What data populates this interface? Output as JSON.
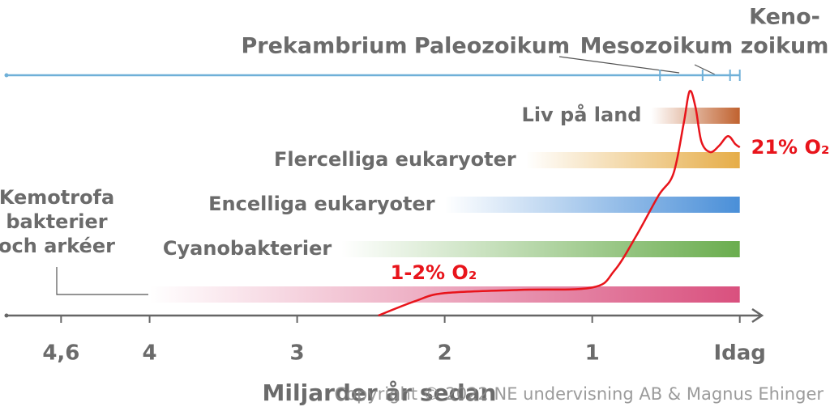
{
  "chart_data": {
    "type": "timeline",
    "x_label": "Miljarder år sedan",
    "xlim": [
      4.97,
      -0.15
    ],
    "xticks": [
      {
        "value": 4.6,
        "label": "4,6"
      },
      4,
      3,
      2,
      1,
      {
        "value": 0,
        "label": "Idag"
      }
    ],
    "eras": [
      "Prekambrium",
      "Paleozoikum",
      "Mesozoikum",
      [
        "Keno-",
        "zoikum"
      ]
    ],
    "era_boundaries": [
      0.541,
      0.252,
      0.066,
      0
    ],
    "series": [
      {
        "name": "Liv på land",
        "color": "#c0622f",
        "start": 0.6,
        "end": 0
      },
      {
        "name": "Flercelliga eukaryoter",
        "color": "#e6ad48",
        "start": 1.45,
        "end": 0
      },
      {
        "name": "Encelliga eukaryoter",
        "color": "#4a8fd8",
        "start": 2.0,
        "end": 0
      },
      {
        "name": "Cyanobakterier",
        "color": "#6aad4e",
        "start": 2.7,
        "end": 0
      },
      {
        "name": [
          "Kemotrofa",
          "bakterier",
          "och arkéer"
        ],
        "color": "#d9507e",
        "start": 4.0,
        "end": 0
      }
    ],
    "oxygen": {
      "color": "#e8141b",
      "ylim": [
        0,
        30
      ],
      "x": [
        2.45,
        2.2,
        2.0,
        1.5,
        1.0,
        0.85,
        0.7,
        0.55,
        0.45,
        0.38,
        0.34,
        0.3,
        0.26,
        0.2,
        0.14,
        0.08,
        0.03,
        0
      ],
      "values": [
        0,
        1.8,
        2.8,
        3.2,
        3.5,
        5.6,
        10,
        15,
        17.7,
        24,
        28,
        26,
        21.7,
        20.4,
        21.2,
        22.4,
        21.4,
        21
      ],
      "annotations": [
        "1-2% O₂",
        "21% O₂"
      ]
    },
    "copyright": "Copyright © 2022 NE undervisning AB & Magnus Ehinger"
  }
}
